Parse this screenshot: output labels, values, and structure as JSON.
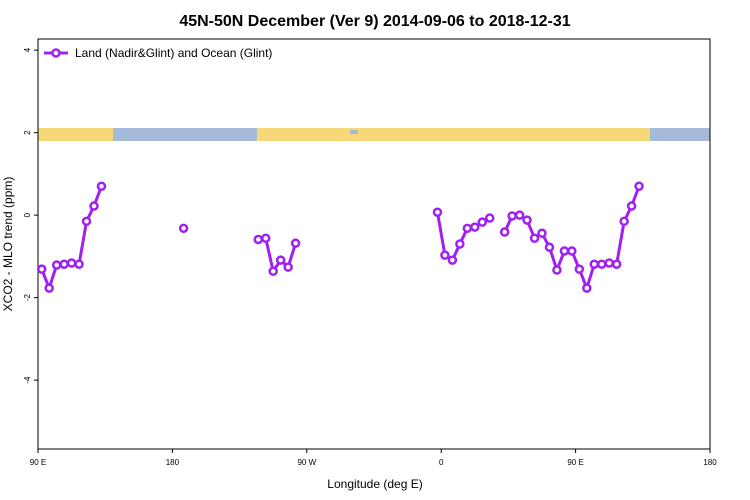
{
  "chart_data": {
    "type": "line",
    "title": "45N-50N December (Ver 9)   2014-09-06 to 2018-12-31",
    "x_label": "Longitude (deg E)",
    "y_label": "XCO2 - MLO trend (ppm)",
    "x": [
      92.5,
      97.5,
      102.5,
      107.5,
      112.5,
      117.5,
      122.5,
      127.5,
      132.5,
      137.5,
      187.5,
      192.5,
      237.5,
      242.5,
      247.5,
      252.5,
      257.5,
      262.5,
      267.5,
      357.5,
      362.5,
      367.5,
      372.5,
      377.5,
      382.5,
      387.5,
      392.5,
      397.5,
      402.5,
      407.5,
      412.5,
      417.5,
      422.5,
      427.5,
      432.5,
      437.5,
      442.5,
      447.5,
      452.5,
      457.5,
      462.5,
      467.5,
      472.5,
      477.5,
      482.5,
      487.5,
      492.5
    ],
    "series": [
      {
        "name": "Land (Nadir&Glint) and Ocean (Glint)",
        "color": "#a020f0",
        "values": [
          -1.31,
          -1.77,
          -1.21,
          -1.19,
          -1.16,
          -1.19,
          -0.15,
          0.22,
          0.7,
          null,
          -0.32,
          null,
          -0.59,
          -0.56,
          -1.36,
          -1.09,
          -1.26,
          -0.68,
          null,
          0.07,
          -0.97,
          -1.09,
          -0.7,
          -0.32,
          -0.29,
          -0.17,
          -0.07,
          null,
          -0.41,
          -0.02,
          0.0,
          -0.12,
          -0.56,
          -0.44,
          -0.78,
          -1.33,
          -0.87,
          -0.87,
          -1.31,
          -1.77,
          -1.19,
          -1.19,
          -1.16,
          -1.19,
          -0.15,
          0.22,
          0.7
        ]
      }
    ],
    "xlim": [
      90,
      540
    ],
    "xticks": [
      {
        "value": 90,
        "label": "90 E"
      },
      180,
      {
        "value": 270,
        "label": "90 W"
      },
      {
        "value": 360,
        "label": "0"
      },
      {
        "value": 450,
        "label": "90 E"
      },
      {
        "value": 540,
        "label": "180"
      }
    ],
    "ylim": [
      -5.67,
      4.27
    ],
    "yticks": [
      -4,
      -2,
      0,
      2,
      4
    ],
    "legend": "top-left"
  }
}
